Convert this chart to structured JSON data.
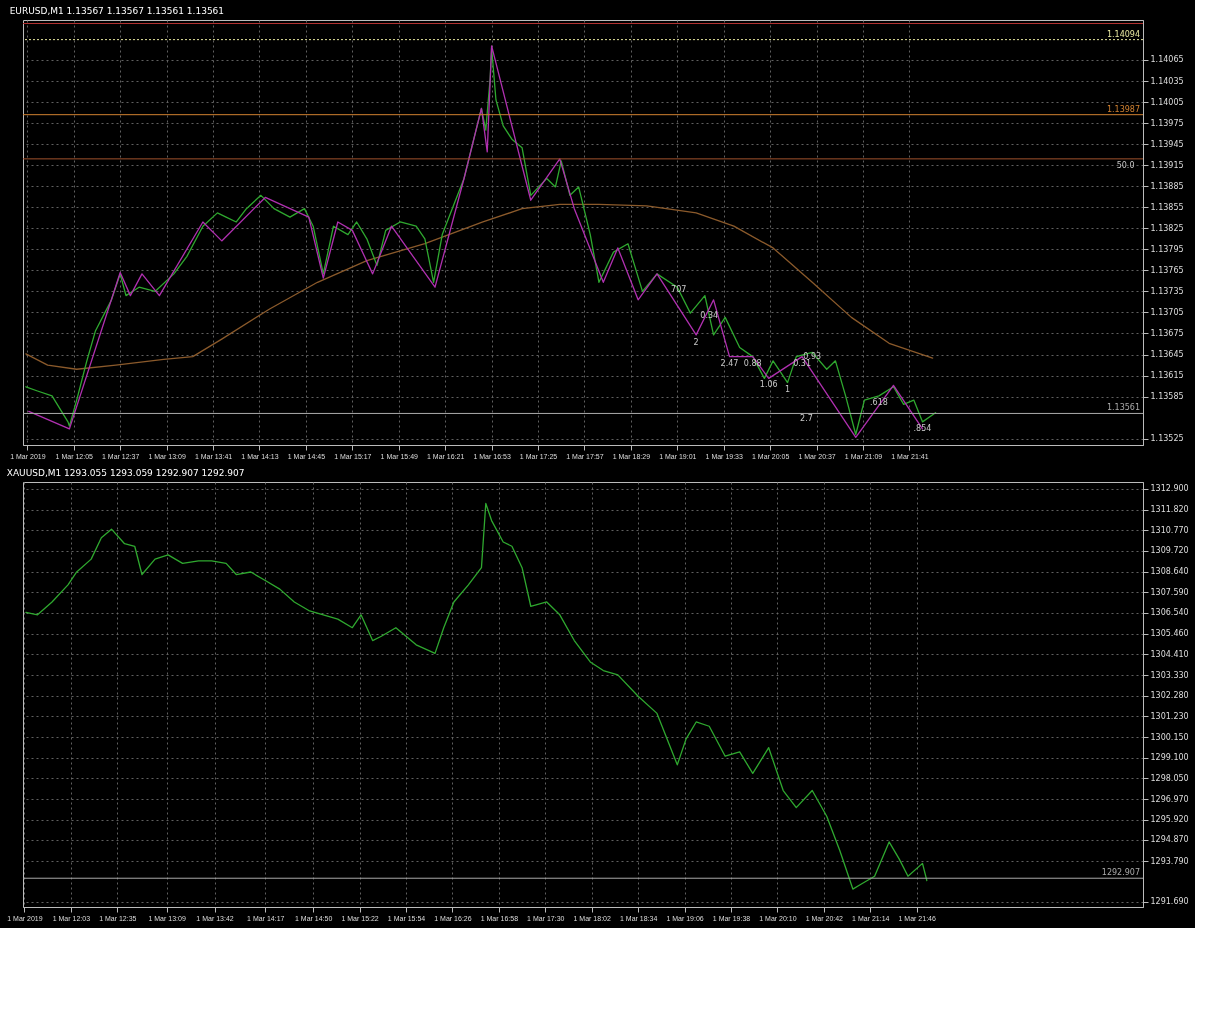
{
  "chart_data": [
    {
      "type": "line",
      "title": "EURUSD,M1  1.13567 1.13567 1.13561 1.13561",
      "xlim": [
        "2019-03-01T11:30",
        "2019-03-02T00:22"
      ],
      "ylim": [
        1.13516,
        1.14122
      ],
      "xticks": [
        {
          "value": "2019-03-01T11:33",
          "label": "1 Mar 2019"
        },
        {
          "value": "2019-03-01T12:05",
          "label": "1 Mar 12:05"
        },
        {
          "value": "2019-03-01T12:37",
          "label": "1 Mar 12:37"
        },
        {
          "value": "2019-03-01T13:09",
          "label": "1 Mar 13:09"
        },
        {
          "value": "2019-03-01T13:41",
          "label": "1 Mar 13:41"
        },
        {
          "value": "2019-03-01T14:13",
          "label": "1 Mar 14:13"
        },
        {
          "value": "2019-03-01T14:45",
          "label": "1 Mar 14:45"
        },
        {
          "value": "2019-03-01T15:17",
          "label": "1 Mar 15:17"
        },
        {
          "value": "2019-03-01T15:49",
          "label": "1 Mar 15:49"
        },
        {
          "value": "2019-03-01T16:21",
          "label": "1 Mar 16:21"
        },
        {
          "value": "2019-03-01T16:53",
          "label": "1 Mar 16:53"
        },
        {
          "value": "2019-03-01T17:25",
          "label": "1 Mar 17:25"
        },
        {
          "value": "2019-03-01T17:57",
          "label": "1 Mar 17:57"
        },
        {
          "value": "2019-03-01T18:29",
          "label": "1 Mar 18:29"
        },
        {
          "value": "2019-03-01T19:01",
          "label": "1 Mar 19:01"
        },
        {
          "value": "2019-03-01T19:33",
          "label": "1 Mar 19:33"
        },
        {
          "value": "2019-03-01T20:05",
          "label": "1 Mar 20:05"
        },
        {
          "value": "2019-03-01T20:37",
          "label": "1 Mar 20:37"
        },
        {
          "value": "2019-03-01T21:09",
          "label": "1 Mar 21:09"
        },
        {
          "value": "2019-03-01T21:41",
          "label": "1 Mar 21:41"
        }
      ],
      "yticks": [
        1.13525,
        1.13585,
        1.13615,
        1.13645,
        1.13675,
        1.13705,
        1.13735,
        1.13765,
        1.13795,
        1.13825,
        1.13855,
        1.13885,
        1.13915,
        1.13945,
        1.13975,
        1.14005,
        1.14035,
        1.14065
      ],
      "grid": true,
      "series": [
        {
          "color": "#8b5a2b",
          "x": [
            "2019-03-01T11:32",
            "2019-03-01T11:47",
            "2019-03-01T12:07",
            "2019-03-01T12:34",
            "2019-03-01T13:07",
            "2019-03-01T13:27",
            "2019-03-01T13:47",
            "2019-03-01T14:20",
            "2019-03-01T14:53",
            "2019-03-01T15:27",
            "2019-03-01T16:07",
            "2019-03-01T16:47",
            "2019-03-01T17:14",
            "2019-03-01T17:40",
            "2019-03-01T18:07",
            "2019-03-01T18:40",
            "2019-03-01T19:14",
            "2019-03-01T19:40",
            "2019-03-01T20:07",
            "2019-03-01T20:34",
            "2019-03-01T21:01",
            "2019-03-01T21:27",
            "2019-03-01T21:57"
          ],
          "values": [
            1.13646,
            1.1363,
            1.13624,
            1.1363,
            1.13638,
            1.13642,
            1.13667,
            1.1371,
            1.13748,
            1.13779,
            1.13803,
            1.13834,
            1.13853,
            1.13859,
            1.13859,
            1.13857,
            1.13847,
            1.13828,
            1.13797,
            1.13748,
            1.13698,
            1.13661,
            1.1364
          ]
        },
        {
          "color": "#2fa82f",
          "x": [
            "2019-03-01T11:32",
            "2019-03-01T11:40",
            "2019-03-01T11:50",
            "2019-03-01T12:01",
            "2019-03-01T12:02",
            "2019-03-01T12:07",
            "2019-03-01T12:14",
            "2019-03-01T12:20",
            "2019-03-01T12:31",
            "2019-03-01T12:37",
            "2019-03-01T12:41",
            "2019-03-01T12:50",
            "2019-03-01T13:01",
            "2019-03-01T13:14",
            "2019-03-01T13:23",
            "2019-03-01T13:34",
            "2019-03-01T13:44",
            "2019-03-01T13:50",
            "2019-03-01T13:57",
            "2019-03-01T14:04",
            "2019-03-01T14:14",
            "2019-03-01T14:23",
            "2019-03-01T14:34",
            "2019-03-01T14:44",
            "2019-03-01T14:50",
            "2019-03-01T14:57",
            "2019-03-01T15:04",
            "2019-03-01T15:14",
            "2019-03-01T15:20",
            "2019-03-01T15:27",
            "2019-03-01T15:34",
            "2019-03-01T15:40",
            "2019-03-01T15:50",
            "2019-03-01T16:01",
            "2019-03-01T16:07",
            "2019-03-01T16:13",
            "2019-03-01T16:19",
            "2019-03-01T16:27",
            "2019-03-01T16:34",
            "2019-03-01T16:40",
            "2019-03-01T16:46",
            "2019-03-01T16:49",
            "2019-03-01T16:52",
            "2019-03-01T16:53",
            "2019-03-01T16:56",
            "2019-03-01T17:01",
            "2019-03-01T17:07",
            "2019-03-01T17:14",
            "2019-03-01T17:20",
            "2019-03-01T17:31",
            "2019-03-01T17:37",
            "2019-03-01T17:41",
            "2019-03-01T17:47",
            "2019-03-01T17:53",
            "2019-03-01T18:01",
            "2019-03-01T18:07",
            "2019-03-01T18:17",
            "2019-03-01T18:27",
            "2019-03-01T18:37",
            "2019-03-01T18:47",
            "2019-03-01T19:01",
            "2019-03-01T19:10",
            "2019-03-01T19:20",
            "2019-03-01T19:26",
            "2019-03-01T19:34",
            "2019-03-01T19:44",
            "2019-03-01T19:53",
            "2019-03-01T20:01",
            "2019-03-01T20:07",
            "2019-03-01T20:17",
            "2019-03-01T20:23",
            "2019-03-01T20:34",
            "2019-03-01T20:44",
            "2019-03-01T20:50",
            "2019-03-01T20:57",
            "2019-03-01T21:04",
            "2019-03-01T21:10",
            "2019-03-01T21:20",
            "2019-03-01T21:30",
            "2019-03-01T21:37",
            "2019-03-01T21:44",
            "2019-03-01T21:50",
            "2019-03-01T21:59"
          ],
          "values": [
            1.13599,
            1.13593,
            1.13586,
            1.13549,
            1.13543,
            1.1358,
            1.13636,
            1.13679,
            1.13723,
            1.1376,
            1.13729,
            1.13741,
            1.13735,
            1.1376,
            1.13785,
            1.13828,
            1.13847,
            1.13841,
            1.13834,
            1.13853,
            1.13872,
            1.13853,
            1.13841,
            1.13853,
            1.13828,
            1.1376,
            1.13828,
            1.13816,
            1.13834,
            1.1381,
            1.13772,
            1.13822,
            1.13834,
            1.13828,
            1.1381,
            1.13748,
            1.13816,
            1.13859,
            1.13896,
            1.13946,
            1.13996,
            1.13965,
            1.14039,
            1.14082,
            1.14008,
            1.13971,
            1.13952,
            1.1394,
            1.13872,
            1.13896,
            1.13884,
            1.13921,
            1.13872,
            1.13884,
            1.13816,
            1.13748,
            1.13791,
            1.13803,
            1.13735,
            1.1376,
            1.13741,
            1.13704,
            1.13729,
            1.13673,
            1.13698,
            1.13655,
            1.13642,
            1.13611,
            1.13636,
            1.13605,
            1.13642,
            1.13648,
            1.13624,
            1.13636,
            1.13586,
            1.13531,
            1.1358,
            1.13586,
            1.13599,
            1.13574,
            1.1358,
            1.13549,
            1.13562
          ]
        },
        {
          "color": "#b030b0",
          "x": [
            "2019-03-01T11:34",
            "2019-03-01T12:02",
            "2019-03-01T12:37",
            "2019-03-01T12:44",
            "2019-03-01T12:52",
            "2019-03-01T13:04",
            "2019-03-01T13:34",
            "2019-03-01T13:47",
            "2019-03-01T14:17",
            "2019-03-01T14:47",
            "2019-03-01T14:57",
            "2019-03-01T15:07",
            "2019-03-01T15:17",
            "2019-03-01T15:31",
            "2019-03-01T15:44",
            "2019-03-01T16:14",
            "2019-03-01T16:34",
            "2019-03-01T16:46",
            "2019-03-01T16:50",
            "2019-03-01T16:53",
            "2019-03-01T17:20",
            "2019-03-01T17:40",
            "2019-03-01T17:50",
            "2019-03-01T18:10",
            "2019-03-01T18:20",
            "2019-03-01T18:34",
            "2019-03-01T18:47",
            "2019-03-01T19:14",
            "2019-03-01T19:26",
            "2019-03-01T19:37",
            "2019-03-01T19:53",
            "2019-03-01T20:04",
            "2019-03-01T20:27",
            "2019-03-01T21:04",
            "2019-03-01T21:30",
            "2019-03-01T21:50"
          ],
          "values": [
            1.13564,
            1.13539,
            1.13762,
            1.13729,
            1.1376,
            1.13729,
            1.13834,
            1.13807,
            1.13869,
            1.13841,
            1.13754,
            1.13834,
            1.13822,
            1.1376,
            1.13828,
            1.13741,
            1.13896,
            1.13996,
            1.13934,
            1.14085,
            1.13865,
            1.13924,
            1.13853,
            1.13748,
            1.13797,
            1.13723,
            1.1376,
            1.13673,
            1.13723,
            1.13642,
            1.13642,
            1.13611,
            1.13642,
            1.13527,
            1.13601,
            1.13539
          ]
        }
      ],
      "ref_lines": [
        {
          "axis": "y",
          "value": 1.14117,
          "color": "#b03030"
        },
        {
          "axis": "y",
          "value": 1.14094,
          "label": "1.14094",
          "color": "#e8e8a0",
          "line_style": "dotted"
        },
        {
          "axis": "y",
          "value": 1.13987,
          "label": "1.13987",
          "color": "#d08030"
        },
        {
          "axis": "y",
          "value": 1.13924,
          "color": "#a0522d"
        },
        {
          "axis": "y",
          "value": 1.13561,
          "label": "1.13561",
          "color": "#aaaaaa"
        }
      ],
      "annotations": [
        {
          "text": "50.0",
          "x": "2019-03-02T00:10",
          "y": 1.13924
        },
        {
          "text": "707",
          "x": "2019-03-01T19:02",
          "y": 1.13747
        },
        {
          "text": "0.34",
          "x": "2019-03-01T19:23",
          "y": 1.1371
        },
        {
          "text": "2",
          "x": "2019-03-01T19:14",
          "y": 1.13672
        },
        {
          "text": "0.31",
          "x": "2019-03-01T20:27",
          "y": 1.13642
        },
        {
          "text": "0.88",
          "x": "2019-03-01T19:53",
          "y": 1.13642
        },
        {
          "text": "0.93",
          "x": "2019-03-01T20:34",
          "y": 1.13651
        },
        {
          "text": "2.47",
          "x": "2019-03-01T19:37",
          "y": 1.13642
        },
        {
          "text": "1.06",
          "x": "2019-03-01T20:04",
          "y": 1.13611
        },
        {
          "text": "1",
          "x": "2019-03-01T20:17",
          "y": 1.13605
        },
        {
          "text": ".618",
          "x": "2019-03-01T21:20",
          "y": 1.13586
        },
        {
          "text": "2.7",
          "x": "2019-03-01T20:30",
          "y": 1.13563
        },
        {
          "text": ".854",
          "x": "2019-03-01T21:50",
          "y": 1.13549
        }
      ]
    },
    {
      "type": "line",
      "title": "XAUUSD,M1  1293.055 1293.059 1292.907 1292.907",
      "xlim": [
        "2019-03-01T11:30",
        "2019-03-02T00:22"
      ],
      "ylim": [
        1291.43,
        1313.25
      ],
      "xticks": [
        {
          "value": "2019-03-01T11:31",
          "label": "1 Mar 2019"
        },
        {
          "value": "2019-03-01T12:03",
          "label": "1 Mar 12:03"
        },
        {
          "value": "2019-03-01T12:35",
          "label": "1 Mar 12:35"
        },
        {
          "value": "2019-03-01T13:09",
          "label": "1 Mar 13:09"
        },
        {
          "value": "2019-03-01T13:42",
          "label": "1 Mar 13:42"
        },
        {
          "value": "2019-03-01T14:17",
          "label": "1 Mar 14:17"
        },
        {
          "value": "2019-03-01T14:50",
          "label": "1 Mar 14:50"
        },
        {
          "value": "2019-03-01T15:22",
          "label": "1 Mar 15:22"
        },
        {
          "value": "2019-03-01T15:54",
          "label": "1 Mar 15:54"
        },
        {
          "value": "2019-03-01T16:26",
          "label": "1 Mar 16:26"
        },
        {
          "value": "2019-03-01T16:58",
          "label": "1 Mar 16:58"
        },
        {
          "value": "2019-03-01T17:30",
          "label": "1 Mar 17:30"
        },
        {
          "value": "2019-03-01T18:02",
          "label": "1 Mar 18:02"
        },
        {
          "value": "2019-03-01T18:34",
          "label": "1 Mar 18:34"
        },
        {
          "value": "2019-03-01T19:06",
          "label": "1 Mar 19:06"
        },
        {
          "value": "2019-03-01T19:38",
          "label": "1 Mar 19:38"
        },
        {
          "value": "2019-03-01T20:10",
          "label": "1 Mar 20:10"
        },
        {
          "value": "2019-03-01T20:42",
          "label": "1 Mar 20:42"
        },
        {
          "value": "2019-03-01T21:14",
          "label": "1 Mar 21:14"
        },
        {
          "value": "2019-03-01T21:46",
          "label": "1 Mar 21:46"
        }
      ],
      "yticks": [
        {
          "value": 1291.69,
          "label": "1291.690"
        },
        {
          "value": 1293.79,
          "label": "1293.790"
        },
        {
          "value": 1294.87,
          "label": "1294.870"
        },
        {
          "value": 1295.92,
          "label": "1295.920"
        },
        {
          "value": 1296.97,
          "label": "1296.970"
        },
        {
          "value": 1298.05,
          "label": "1298.050"
        },
        {
          "value": 1299.1,
          "label": "1299.100"
        },
        {
          "value": 1300.15,
          "label": "1300.150"
        },
        {
          "value": 1301.23,
          "label": "1301.230"
        },
        {
          "value": 1302.28,
          "label": "1302.280"
        },
        {
          "value": 1303.33,
          "label": "1303.330"
        },
        {
          "value": 1304.41,
          "label": "1304.410"
        },
        {
          "value": 1305.46,
          "label": "1305.460"
        },
        {
          "value": 1306.54,
          "label": "1306.540"
        },
        {
          "value": 1307.59,
          "label": "1307.590"
        },
        {
          "value": 1308.64,
          "label": "1308.640"
        },
        {
          "value": 1309.72,
          "label": "1309.720"
        },
        {
          "value": 1310.77,
          "label": "1310.770"
        },
        {
          "value": 1311.82,
          "label": "1311.820"
        },
        {
          "value": 1312.9,
          "label": "1312.900"
        }
      ],
      "grid": true,
      "series": [
        {
          "color": "#2fa82f",
          "x": [
            "2019-03-01T11:32",
            "2019-03-01T11:40",
            "2019-03-01T11:50",
            "2019-03-01T12:01",
            "2019-03-01T12:07",
            "2019-03-01T12:17",
            "2019-03-01T12:24",
            "2019-03-01T12:31",
            "2019-03-01T12:40",
            "2019-03-01T12:47",
            "2019-03-01T12:52",
            "2019-03-01T13:01",
            "2019-03-01T13:10",
            "2019-03-01T13:20",
            "2019-03-01T13:31",
            "2019-03-01T13:40",
            "2019-03-01T13:50",
            "2019-03-01T13:57",
            "2019-03-01T14:07",
            "2019-03-01T14:17",
            "2019-03-01T14:27",
            "2019-03-01T14:37",
            "2019-03-01T14:47",
            "2019-03-01T14:57",
            "2019-03-01T15:07",
            "2019-03-01T15:17",
            "2019-03-01T15:23",
            "2019-03-01T15:31",
            "2019-03-01T15:37",
            "2019-03-01T15:47",
            "2019-03-01T16:01",
            "2019-03-01T16:14",
            "2019-03-01T16:20",
            "2019-03-01T16:27",
            "2019-03-01T16:37",
            "2019-03-01T16:46",
            "2019-03-01T16:49",
            "2019-03-01T16:53",
            "2019-03-01T17:01",
            "2019-03-01T17:07",
            "2019-03-01T17:14",
            "2019-03-01T17:20",
            "2019-03-01T17:31",
            "2019-03-01T17:40",
            "2019-03-01T17:50",
            "2019-03-01T18:01",
            "2019-03-01T18:10",
            "2019-03-01T18:20",
            "2019-03-01T18:34",
            "2019-03-01T18:47",
            "2019-03-01T19:01",
            "2019-03-01T19:07",
            "2019-03-01T19:14",
            "2019-03-01T19:23",
            "2019-03-01T19:34",
            "2019-03-01T19:44",
            "2019-03-01T19:53",
            "2019-03-01T20:04",
            "2019-03-01T20:14",
            "2019-03-01T20:23",
            "2019-03-01T20:34",
            "2019-03-01T20:44",
            "2019-03-01T20:53",
            "2019-03-01T21:02",
            "2019-03-01T21:07",
            "2019-03-01T21:17",
            "2019-03-01T21:27",
            "2019-03-01T21:34",
            "2019-03-01T21:40",
            "2019-03-01T21:50",
            "2019-03-01T21:53"
          ],
          "values": [
            1306.56,
            1306.43,
            1307.09,
            1307.97,
            1308.63,
            1309.29,
            1310.39,
            1310.83,
            1310.08,
            1309.95,
            1308.5,
            1309.29,
            1309.51,
            1309.07,
            1309.2,
            1309.2,
            1309.07,
            1308.5,
            1308.63,
            1308.19,
            1307.75,
            1307.09,
            1306.65,
            1306.43,
            1306.21,
            1305.77,
            1306.43,
            1305.11,
            1305.33,
            1305.77,
            1304.89,
            1304.45,
            1305.77,
            1307.09,
            1307.97,
            1308.85,
            1312.15,
            1311.27,
            1310.17,
            1309.95,
            1308.85,
            1306.87,
            1307.09,
            1306.43,
            1305.11,
            1304.01,
            1303.57,
            1303.35,
            1302.25,
            1301.37,
            1298.73,
            1300.05,
            1300.93,
            1300.71,
            1299.17,
            1299.39,
            1298.29,
            1299.61,
            1297.41,
            1296.53,
            1297.41,
            1296.09,
            1294.33,
            1292.35,
            1292.57,
            1293.01,
            1294.77,
            1293.89,
            1293.01,
            1293.67,
            1292.79
          ]
        }
      ],
      "ref_lines": [
        {
          "axis": "y",
          "value": 1292.907,
          "label": "1292.907",
          "color": "#aaaaaa"
        }
      ]
    }
  ]
}
